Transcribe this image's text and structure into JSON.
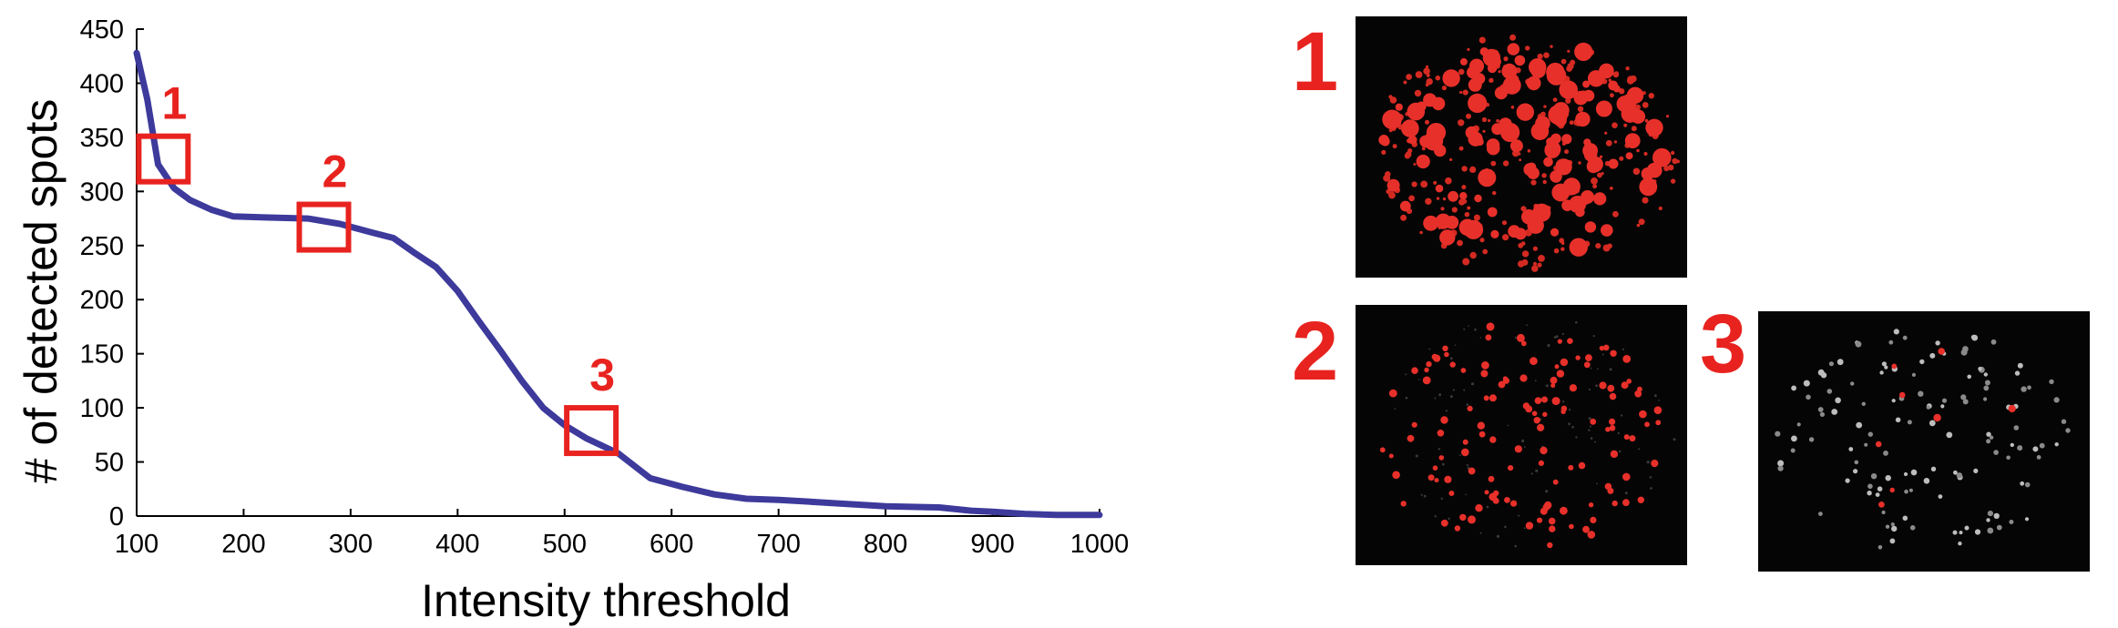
{
  "chart_data": {
    "type": "line",
    "xlabel": "Intensity threshold",
    "ylabel": "# of detected spots",
    "xlim": [
      100,
      1000
    ],
    "ylim": [
      0,
      450
    ],
    "x_ticks": [
      100,
      200,
      300,
      400,
      500,
      600,
      700,
      800,
      900,
      1000
    ],
    "y_ticks": [
      0,
      50,
      100,
      150,
      200,
      250,
      300,
      350,
      400,
      450
    ],
    "grid": false,
    "legend": "none",
    "series": [
      {
        "color": "#3d3a9c",
        "x": [
          100,
          110,
          120,
          135,
          150,
          170,
          190,
          220,
          260,
          290,
          320,
          340,
          360,
          380,
          400,
          420,
          440,
          460,
          480,
          500,
          520,
          550,
          580,
          610,
          640,
          670,
          700,
          750,
          800,
          850,
          880,
          900,
          930,
          960,
          1000
        ],
        "y": [
          428,
          385,
          325,
          303,
          292,
          283,
          277,
          276,
          275,
          270,
          262,
          257,
          243,
          230,
          208,
          180,
          153,
          125,
          100,
          84,
          72,
          58,
          35,
          27,
          20,
          16,
          15,
          12,
          9,
          8,
          5,
          4,
          2,
          1,
          1
        ]
      }
    ],
    "markers": [
      {
        "label": "1",
        "x": 125,
        "y": 330
      },
      {
        "label": "2",
        "x": 275,
        "y": 267
      },
      {
        "label": "3",
        "x": 525,
        "y": 79
      }
    ],
    "marker_color": "#e8231f"
  },
  "panels": [
    {
      "label": "1",
      "style": "dense-red"
    },
    {
      "label": "2",
      "style": "sparse-red"
    },
    {
      "label": "3",
      "style": "sparse-white"
    }
  ]
}
